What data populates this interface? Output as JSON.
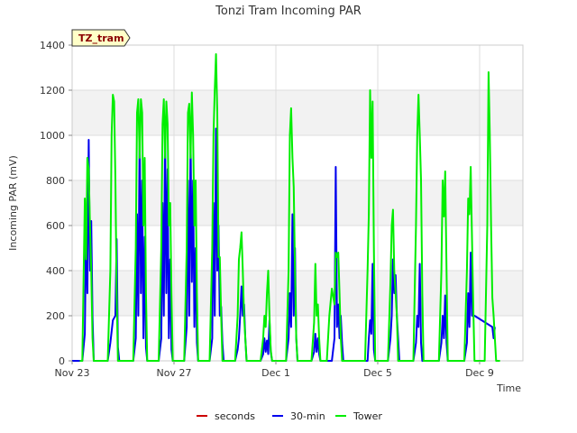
{
  "chart_data": {
    "type": "line",
    "title": "Tonzi Tram Incoming PAR",
    "xlabel": "Time",
    "ylabel": "Incoming PAR (mV)",
    "badge": "TZ_tram",
    "xlim": [
      0,
      17.7
    ],
    "ylim": [
      0,
      1400
    ],
    "x_ticks": [
      {
        "label": "Nov 23",
        "value": 0
      },
      {
        "label": "Nov 27",
        "value": 4
      },
      {
        "label": "Dec 1",
        "value": 8
      },
      {
        "label": "Dec 5",
        "value": 12
      },
      {
        "label": "Dec 9",
        "value": 16
      }
    ],
    "y_ticks": [
      0,
      200,
      400,
      600,
      800,
      1000,
      1200,
      1400
    ],
    "grid": true,
    "legend_position": "bottom",
    "series": [
      {
        "name": "seconds",
        "color": "#cc0000",
        "points": []
      },
      {
        "name": "30-min",
        "color": "#0000ee",
        "points": [
          [
            0.0,
            0
          ],
          [
            0.4,
            0
          ],
          [
            0.5,
            120
          ],
          [
            0.55,
            620
          ],
          [
            0.6,
            300
          ],
          [
            0.65,
            980
          ],
          [
            0.7,
            400
          ],
          [
            0.75,
            620
          ],
          [
            0.8,
            200
          ],
          [
            0.85,
            0
          ],
          [
            1.4,
            0
          ],
          [
            1.5,
            80
          ],
          [
            1.6,
            180
          ],
          [
            1.7,
            200
          ],
          [
            1.75,
            540
          ],
          [
            1.8,
            60
          ],
          [
            1.85,
            0
          ],
          [
            2.4,
            0
          ],
          [
            2.5,
            100
          ],
          [
            2.55,
            650
          ],
          [
            2.6,
            200
          ],
          [
            2.65,
            1030
          ],
          [
            2.7,
            300
          ],
          [
            2.75,
            800
          ],
          [
            2.8,
            100
          ],
          [
            2.85,
            550
          ],
          [
            2.9,
            60
          ],
          [
            2.95,
            0
          ],
          [
            3.4,
            0
          ],
          [
            3.5,
            100
          ],
          [
            3.55,
            700
          ],
          [
            3.6,
            200
          ],
          [
            3.65,
            1030
          ],
          [
            3.7,
            300
          ],
          [
            3.75,
            850
          ],
          [
            3.8,
            100
          ],
          [
            3.85,
            450
          ],
          [
            3.9,
            50
          ],
          [
            3.95,
            0
          ],
          [
            4.4,
            0
          ],
          [
            4.5,
            150
          ],
          [
            4.55,
            800
          ],
          [
            4.6,
            200
          ],
          [
            4.65,
            1000
          ],
          [
            4.7,
            350
          ],
          [
            4.75,
            800
          ],
          [
            4.8,
            150
          ],
          [
            4.85,
            500
          ],
          [
            4.9,
            80
          ],
          [
            4.95,
            0
          ],
          [
            5.4,
            0
          ],
          [
            5.5,
            100
          ],
          [
            5.55,
            700
          ],
          [
            5.6,
            200
          ],
          [
            5.65,
            1030
          ],
          [
            5.7,
            400
          ],
          [
            5.75,
            600
          ],
          [
            5.8,
            200
          ],
          [
            5.85,
            240
          ],
          [
            5.9,
            80
          ],
          [
            5.95,
            0
          ],
          [
            6.4,
            0
          ],
          [
            6.5,
            50
          ],
          [
            6.55,
            100
          ],
          [
            6.6,
            200
          ],
          [
            6.65,
            330
          ],
          [
            6.7,
            200
          ],
          [
            6.75,
            250
          ],
          [
            6.8,
            100
          ],
          [
            6.85,
            0
          ],
          [
            7.4,
            0
          ],
          [
            7.5,
            30
          ],
          [
            7.55,
            100
          ],
          [
            7.6,
            40
          ],
          [
            7.65,
            90
          ],
          [
            7.7,
            30
          ],
          [
            7.75,
            180
          ],
          [
            7.8,
            40
          ],
          [
            7.85,
            0
          ],
          [
            8.4,
            0
          ],
          [
            8.5,
            100
          ],
          [
            8.55,
            300
          ],
          [
            8.6,
            150
          ],
          [
            8.65,
            650
          ],
          [
            8.7,
            200
          ],
          [
            8.75,
            500
          ],
          [
            8.8,
            100
          ],
          [
            8.85,
            0
          ],
          [
            9.4,
            0
          ],
          [
            9.5,
            40
          ],
          [
            9.55,
            120
          ],
          [
            9.6,
            40
          ],
          [
            9.65,
            100
          ],
          [
            9.7,
            30
          ],
          [
            9.75,
            0
          ],
          [
            10.2,
            0
          ],
          [
            10.3,
            100
          ],
          [
            10.35,
            860
          ],
          [
            10.4,
            150
          ],
          [
            10.45,
            250
          ],
          [
            10.5,
            100
          ],
          [
            10.55,
            200
          ],
          [
            10.6,
            80
          ],
          [
            10.65,
            0
          ],
          [
            11.6,
            0
          ],
          [
            11.65,
            100
          ],
          [
            11.7,
            180
          ],
          [
            11.75,
            120
          ],
          [
            11.8,
            430
          ],
          [
            11.85,
            50
          ],
          [
            11.9,
            0
          ],
          [
            12.4,
            0
          ],
          [
            12.5,
            100
          ],
          [
            12.55,
            200
          ],
          [
            12.6,
            450
          ],
          [
            12.65,
            300
          ],
          [
            12.7,
            380
          ],
          [
            12.75,
            200
          ],
          [
            12.8,
            100
          ],
          [
            12.85,
            0
          ],
          [
            13.4,
            0
          ],
          [
            13.5,
            80
          ],
          [
            13.55,
            200
          ],
          [
            13.6,
            150
          ],
          [
            13.65,
            430
          ],
          [
            13.7,
            80
          ],
          [
            13.75,
            0
          ],
          [
            14.4,
            0
          ],
          [
            14.5,
            80
          ],
          [
            14.55,
            200
          ],
          [
            14.6,
            100
          ],
          [
            14.65,
            290
          ],
          [
            14.7,
            80
          ],
          [
            14.75,
            0
          ],
          [
            15.4,
            0
          ],
          [
            15.5,
            80
          ],
          [
            15.55,
            300
          ],
          [
            15.6,
            150
          ],
          [
            15.65,
            480
          ],
          [
            15.7,
            200
          ],
          [
            15.8,
            200
          ],
          [
            16.5,
            150
          ],
          [
            16.55,
            100
          ],
          [
            16.6,
            150
          ]
        ]
      },
      {
        "name": "Tower",
        "color": "#00ee00",
        "points": [
          [
            0.3,
            0
          ],
          [
            0.4,
            0
          ],
          [
            0.5,
            720
          ],
          [
            0.55,
            450
          ],
          [
            0.6,
            900
          ],
          [
            0.65,
            850
          ],
          [
            0.7,
            600
          ],
          [
            0.75,
            400
          ],
          [
            0.8,
            100
          ],
          [
            0.85,
            0
          ],
          [
            1.4,
            0
          ],
          [
            1.5,
            400
          ],
          [
            1.55,
            1000
          ],
          [
            1.6,
            1180
          ],
          [
            1.65,
            1150
          ],
          [
            1.7,
            800
          ],
          [
            1.75,
            300
          ],
          [
            1.8,
            0
          ],
          [
            2.4,
            0
          ],
          [
            2.5,
            500
          ],
          [
            2.55,
            1100
          ],
          [
            2.6,
            1160
          ],
          [
            2.65,
            900
          ],
          [
            2.7,
            1160
          ],
          [
            2.75,
            1100
          ],
          [
            2.8,
            600
          ],
          [
            2.85,
            900
          ],
          [
            2.9,
            300
          ],
          [
            2.95,
            0
          ],
          [
            3.4,
            0
          ],
          [
            3.5,
            500
          ],
          [
            3.55,
            1050
          ],
          [
            3.6,
            1160
          ],
          [
            3.65,
            900
          ],
          [
            3.7,
            1150
          ],
          [
            3.75,
            1050
          ],
          [
            3.8,
            600
          ],
          [
            3.85,
            700
          ],
          [
            3.9,
            300
          ],
          [
            3.95,
            0
          ],
          [
            4.4,
            0
          ],
          [
            4.5,
            500
          ],
          [
            4.55,
            1100
          ],
          [
            4.6,
            1140
          ],
          [
            4.65,
            900
          ],
          [
            4.7,
            1190
          ],
          [
            4.75,
            1000
          ],
          [
            4.8,
            600
          ],
          [
            4.85,
            800
          ],
          [
            4.9,
            300
          ],
          [
            4.95,
            0
          ],
          [
            5.4,
            0
          ],
          [
            5.5,
            500
          ],
          [
            5.55,
            1000
          ],
          [
            5.6,
            1200
          ],
          [
            5.65,
            1360
          ],
          [
            5.7,
            1100
          ],
          [
            5.75,
            460
          ],
          [
            5.8,
            460
          ],
          [
            5.85,
            200
          ],
          [
            5.9,
            0
          ],
          [
            6.4,
            0
          ],
          [
            6.5,
            200
          ],
          [
            6.55,
            450
          ],
          [
            6.6,
            500
          ],
          [
            6.65,
            570
          ],
          [
            6.7,
            400
          ],
          [
            6.75,
            200
          ],
          [
            6.8,
            100
          ],
          [
            6.85,
            0
          ],
          [
            7.4,
            0
          ],
          [
            7.5,
            100
          ],
          [
            7.55,
            200
          ],
          [
            7.6,
            150
          ],
          [
            7.65,
            300
          ],
          [
            7.7,
            400
          ],
          [
            7.75,
            200
          ],
          [
            7.8,
            50
          ],
          [
            7.85,
            0
          ],
          [
            8.4,
            0
          ],
          [
            8.5,
            400
          ],
          [
            8.55,
            1000
          ],
          [
            8.6,
            1120
          ],
          [
            8.65,
            900
          ],
          [
            8.7,
            770
          ],
          [
            8.75,
            400
          ],
          [
            8.8,
            100
          ],
          [
            8.85,
            0
          ],
          [
            9.4,
            0
          ],
          [
            9.5,
            170
          ],
          [
            9.55,
            430
          ],
          [
            9.6,
            200
          ],
          [
            9.65,
            250
          ],
          [
            9.7,
            100
          ],
          [
            9.75,
            0
          ],
          [
            10.0,
            0
          ],
          [
            10.1,
            200
          ],
          [
            10.2,
            320
          ],
          [
            10.3,
            250
          ],
          [
            10.35,
            480
          ],
          [
            10.4,
            460
          ],
          [
            10.45,
            480
          ],
          [
            10.5,
            300
          ],
          [
            10.55,
            100
          ],
          [
            10.6,
            0
          ],
          [
            11.5,
            0
          ],
          [
            11.6,
            400
          ],
          [
            11.65,
            650
          ],
          [
            11.7,
            1200
          ],
          [
            11.75,
            900
          ],
          [
            11.8,
            1150
          ],
          [
            11.85,
            500
          ],
          [
            11.9,
            0
          ],
          [
            12.4,
            0
          ],
          [
            12.5,
            350
          ],
          [
            12.55,
            600
          ],
          [
            12.6,
            670
          ],
          [
            12.65,
            400
          ],
          [
            12.7,
            300
          ],
          [
            12.75,
            200
          ],
          [
            12.8,
            0
          ],
          [
            13.4,
            0
          ],
          [
            13.5,
            600
          ],
          [
            13.55,
            1000
          ],
          [
            13.6,
            1180
          ],
          [
            13.65,
            1000
          ],
          [
            13.7,
            800
          ],
          [
            13.75,
            300
          ],
          [
            13.8,
            0
          ],
          [
            14.4,
            0
          ],
          [
            14.5,
            400
          ],
          [
            14.55,
            800
          ],
          [
            14.6,
            640
          ],
          [
            14.65,
            840
          ],
          [
            14.7,
            400
          ],
          [
            14.75,
            0
          ],
          [
            15.4,
            0
          ],
          [
            15.5,
            400
          ],
          [
            15.55,
            720
          ],
          [
            15.6,
            650
          ],
          [
            15.65,
            860
          ],
          [
            15.7,
            550
          ],
          [
            15.75,
            250
          ],
          [
            15.8,
            0
          ],
          [
            16.2,
            0
          ],
          [
            16.3,
            600
          ],
          [
            16.35,
            1280
          ],
          [
            16.4,
            1000
          ],
          [
            16.45,
            600
          ],
          [
            16.5,
            280
          ],
          [
            16.55,
            200
          ],
          [
            16.6,
            100
          ],
          [
            16.65,
            0
          ],
          [
            16.8,
            0
          ]
        ]
      }
    ]
  }
}
